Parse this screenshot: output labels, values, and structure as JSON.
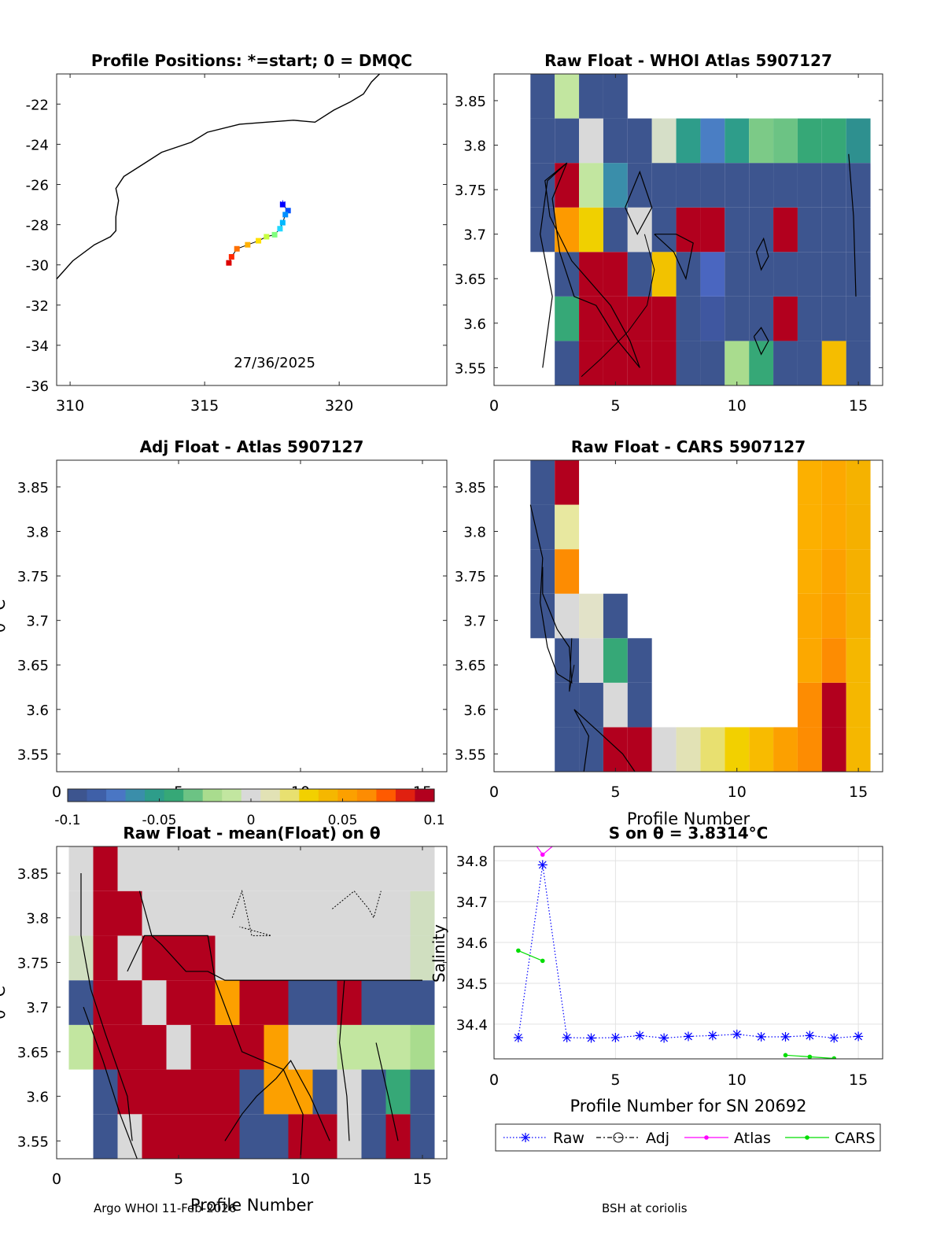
{
  "figure": {
    "footer_left": "Argo WHOI 11-Feb-2026",
    "footer_right": "BSH at coriolis"
  },
  "colors": {
    "blue": "#3d558f",
    "red": "#b2001e",
    "light_gray": "#d9d9d9",
    "pale_green": "#c2e6a0",
    "orange": "#fd8c02",
    "yellow_orange": "#f5b700",
    "teal": "#2e9d8a",
    "green": "#36a877",
    "mid_blue": "#4a76c4",
    "raw_series": "#0000ff",
    "atlas_series": "#ff00ff",
    "cars_series": "#00dd00"
  },
  "chart_data": [
    {
      "id": "profile_positions",
      "type": "scatter",
      "title": "Profile Positions: *=start; 0 = DMQC",
      "xlim": [
        309.5,
        324
      ],
      "ylim": [
        -36,
        -20.5
      ],
      "xticks": [
        310,
        315,
        320
      ],
      "yticks": [
        -22,
        -24,
        -26,
        -28,
        -30,
        -32,
        -34,
        -36
      ],
      "annotation": "27/36/2025",
      "coastline": [
        [
          309.5,
          -30.7
        ],
        [
          310.1,
          -29.8
        ],
        [
          310.9,
          -29.0
        ],
        [
          311.5,
          -28.6
        ],
        [
          311.7,
          -28.3
        ],
        [
          311.7,
          -27.6
        ],
        [
          311.8,
          -26.8
        ],
        [
          311.7,
          -26.2
        ],
        [
          312.0,
          -25.6
        ],
        [
          312.7,
          -25.0
        ],
        [
          313.4,
          -24.4
        ],
        [
          314.5,
          -23.9
        ],
        [
          315.1,
          -23.4
        ],
        [
          316.3,
          -23.0
        ],
        [
          317.3,
          -22.9
        ],
        [
          318.3,
          -22.8
        ],
        [
          319.1,
          -22.9
        ],
        [
          319.8,
          -22.3
        ],
        [
          320.4,
          -21.9
        ],
        [
          320.9,
          -21.5
        ],
        [
          321.2,
          -20.9
        ],
        [
          321.5,
          -20.5
        ]
      ],
      "track": {
        "lon": [
          317.9,
          318.1,
          318.0,
          317.9,
          317.8,
          317.6,
          317.3,
          317.0,
          316.6,
          316.2,
          316.0,
          315.9
        ],
        "lat": [
          -27.0,
          -27.3,
          -27.5,
          -27.9,
          -28.2,
          -28.5,
          -28.6,
          -28.8,
          -29.0,
          -29.2,
          -29.6,
          -29.9
        ],
        "colors": [
          "#0000ff",
          "#0050ff",
          "#0090ff",
          "#00b8ff",
          "#20d8ff",
          "#7fff7f",
          "#c8ff40",
          "#ffe000",
          "#ffb000",
          "#ff7000",
          "#ff2800",
          "#dd0000"
        ]
      }
    },
    {
      "id": "raw_whoi",
      "type": "heatmap",
      "title": "Raw Float - WHOI Atlas  5907127",
      "xlim": [
        0,
        16
      ],
      "ylim": [
        3.53,
        3.88
      ],
      "xticks": [
        0,
        5,
        10,
        15
      ],
      "yticks": [
        3.55,
        3.6,
        3.65,
        3.7,
        3.75,
        3.8,
        3.85
      ],
      "row_edges": [
        3.53,
        3.58,
        3.63,
        3.68,
        3.73,
        3.78,
        3.83,
        3.88
      ],
      "rows": [
        [
          "",
          "",
          "#3d558f",
          "#b2001e",
          "#b2001e",
          "#b2001e",
          "#b2001e",
          "#3d558f",
          "#3d558f",
          "#a9dc8e",
          "#36a877",
          "#3d558f",
          "#3d558f",
          "#f5bd00",
          "#3d558f"
        ],
        [
          "",
          "",
          "#36a877",
          "#b2001e",
          "#b2001e",
          "#b2001e",
          "#b2001e",
          "#3d558f",
          "#3f57a0",
          "#3d558f",
          "#3d558f",
          "#b2001e",
          "#3d558f",
          "#3d558f",
          "#3d558f"
        ],
        [
          "",
          "",
          "#3d558f",
          "#b2001e",
          "#b2001e",
          "#3d558f",
          "#f2c200",
          "#3d558f",
          "#4a66c0",
          "#3d558f",
          "#3d558f",
          "#3d558f",
          "#3d558f",
          "#3d558f",
          "#3d558f"
        ],
        [
          "",
          "#3d558f",
          "#fd9a00",
          "#f0d000",
          "#3d558f",
          "#d8d8d8",
          "#3d558f",
          "#b2001e",
          "#b2001e",
          "#3d558f",
          "#3d558f",
          "#b2001e",
          "#3d558f",
          "#3d558f",
          "#3d558f"
        ],
        [
          "",
          "#3d558f",
          "#b2001e",
          "#c2e6a0",
          "#3a8eaa",
          "#3d558f",
          "#3d558f",
          "#3d558f",
          "#3d558f",
          "#3d558f",
          "#3d558f",
          "#3d558f",
          "#3d558f",
          "#3d558f",
          "#3d558f"
        ],
        [
          "",
          "#3d558f",
          "#3d558f",
          "#d9d9d9",
          "#3d558f",
          "#3d558f",
          "#d6dfc8",
          "#2e9d8a",
          "#4a7ec4",
          "#2e9d8a",
          "#7cca87",
          "#6cc384",
          "#36a877",
          "#36a877",
          "#2e908f"
        ],
        [
          "",
          "#3d558f",
          "#c2e6a0",
          "#3d558f",
          "#3d558f",
          "",
          "",
          "",
          "",
          "",
          "",
          "",
          "",
          "",
          ""
        ]
      ]
    },
    {
      "id": "adj_atlas",
      "type": "heatmap",
      "title": "Adj Float - Atlas  5907127",
      "ylabel": "θ °C",
      "xlim": [
        0,
        16
      ],
      "ylim": [
        3.53,
        3.88
      ],
      "xticks": [
        0,
        5,
        10,
        15
      ],
      "yticks": [
        3.55,
        3.6,
        3.65,
        3.7,
        3.75,
        3.8,
        3.85
      ],
      "rows": []
    },
    {
      "id": "raw_cars",
      "type": "heatmap",
      "title": "Raw Float - CARS  5907127",
      "xlabel": "Profile Number",
      "xlim": [
        0,
        16
      ],
      "ylim": [
        3.53,
        3.88
      ],
      "xticks": [
        0,
        5,
        10,
        15
      ],
      "yticks": [
        3.55,
        3.6,
        3.65,
        3.7,
        3.75,
        3.8,
        3.85
      ],
      "row_edges": [
        3.53,
        3.58,
        3.63,
        3.68,
        3.73,
        3.78,
        3.83,
        3.88
      ],
      "rows": [
        [
          "",
          "",
          "#3d558f",
          "#3d558f",
          "#b2001e",
          "#b2001e",
          "#d9d9d9",
          "#e2e2b5",
          "#e8e070",
          "#f2d000",
          "#f8bb00",
          "#fca000",
          "#fd8c02",
          "#b2001e",
          "#f5b700"
        ],
        [
          "",
          "",
          "#3d558f",
          "#3d558f",
          "#d9d9d9",
          "#3d558f",
          "",
          "",
          "",
          "",
          "",
          "",
          "#fd8c02",
          "#b2001e",
          "#f5b700"
        ],
        [
          "",
          "",
          "#3d558f",
          "#d9d9d9",
          "#36a877",
          "#3d558f",
          "",
          "",
          "",
          "",
          "",
          "",
          "#fca800",
          "#fd8c02",
          "#f5b700"
        ],
        [
          "",
          "#3d558f",
          "#d9d9d9",
          "#e2e2c8",
          "#3d558f",
          "",
          "",
          "",
          "",
          "",
          "",
          "",
          "#fca800",
          "#fd9c00",
          "#f5b000"
        ],
        [
          "",
          "#3d558f",
          "#fd8c02",
          "",
          "",
          "",
          "",
          "",
          "",
          "",
          "",
          "",
          "#fcae00",
          "#fda000",
          "#f5b000"
        ],
        [
          "",
          "#3d558f",
          "#e8e8a0",
          "",
          "",
          "",
          "",
          "",
          "",
          "",
          "",
          "",
          "#fcb000",
          "#fda800",
          "#f5b000"
        ],
        [
          "",
          "#3d558f",
          "#b2001e",
          "",
          "",
          "",
          "",
          "",
          "",
          "",
          "",
          "",
          "#fcb000",
          "#fda800",
          "#f5b200"
        ]
      ]
    },
    {
      "id": "colorbar",
      "type": "colorbar",
      "range": [
        -0.1,
        0.1
      ],
      "tick_labels": [
        "-0.1",
        "-0.05",
        "0",
        "0.05",
        "0.1"
      ],
      "colors": [
        "#3d558f",
        "#3f60a8",
        "#4a76c4",
        "#3a8eaa",
        "#2e9d8a",
        "#36a877",
        "#6cc384",
        "#a9dc8e",
        "#c2e6a0",
        "#d9d9d9",
        "#e2e2b5",
        "#e8e070",
        "#f2d000",
        "#f5b700",
        "#fca000",
        "#fd8c02",
        "#ff5a00",
        "#e02010",
        "#b2001e"
      ]
    },
    {
      "id": "raw_minus_mean",
      "type": "heatmap",
      "title": "Raw Float - mean(Float) on θ",
      "ylabel": "θ °C",
      "xlabel": "Profile Number",
      "xlim": [
        0,
        16
      ],
      "ylim": [
        3.53,
        3.88
      ],
      "xticks": [
        0,
        5,
        10,
        15
      ],
      "yticks": [
        3.55,
        3.6,
        3.65,
        3.7,
        3.75,
        3.8,
        3.85
      ],
      "row_edges": [
        3.53,
        3.58,
        3.63,
        3.68,
        3.73,
        3.78,
        3.83,
        3.88
      ],
      "rows": [
        [
          "",
          "#3d558f",
          "#d9d9d9",
          "#b2001e",
          "#b2001e",
          "#b2001e",
          "#b2001e",
          "#3d558f",
          "#3d558f",
          "#b2001e",
          "#b2001e",
          "#d9d9d9",
          "#3d558f",
          "#b2001e",
          "#3d558f"
        ],
        [
          "",
          "#3d558f",
          "#b2001e",
          "#b2001e",
          "#b2001e",
          "#b2001e",
          "#b2001e",
          "#3d558f",
          "#fca000",
          "#fca000",
          "#3d558f",
          "#d9d9d9",
          "#3d558f",
          "#36a877",
          "#3d558f"
        ],
        [
          "#c2e6a0",
          "#b2001e",
          "#b2001e",
          "#b2001e",
          "#d9d9d9",
          "#b2001e",
          "#b2001e",
          "#b2001e",
          "#fca000",
          "#d9d9d9",
          "#d9d9d9",
          "#c2e6a0",
          "#c2e6a0",
          "#c2e6a0",
          "#a9dc8e"
        ],
        [
          "#3d558f",
          "#b2001e",
          "#b2001e",
          "#d9d9d9",
          "#b2001e",
          "#b2001e",
          "#fca000",
          "#b2001e",
          "#b2001e",
          "#3d558f",
          "#3d558f",
          "#b2001e",
          "#3d558f",
          "#3d558f",
          "#3d558f"
        ],
        [
          "#d0dfc0",
          "#b2001e",
          "#d9d9d9",
          "#b2001e",
          "#b2001e",
          "#b2001e",
          "#d9d9d9",
          "#d9d9d9",
          "#d9d9d9",
          "#d9d9d9",
          "#d9d9d9",
          "#d9d9d9",
          "#d9d9d9",
          "#d9d9d9",
          "#d0dfc0"
        ],
        [
          "#d9d9d9",
          "#b2001e",
          "#b2001e",
          "#d9d9d9",
          "#d9d9d9",
          "#d9d9d9",
          "#d9d9d9",
          "#d9d9d9",
          "#d9d9d9",
          "#d9d9d9",
          "#d9d9d9",
          "#d9d9d9",
          "#d9d9d9",
          "#d9d9d9",
          "#d0dfc0"
        ],
        [
          "#d9d9d9",
          "#b2001e",
          "#d9d9d9",
          "#d9d9d9",
          "#d9d9d9",
          "#d9d9d9",
          "#d9d9d9",
          "#d9d9d9",
          "#d9d9d9",
          "#d9d9d9",
          "#d9d9d9",
          "#d9d9d9",
          "#d9d9d9",
          "#d9d9d9",
          "#d9d9d9"
        ]
      ]
    },
    {
      "id": "salinity",
      "type": "line",
      "title": "S on θ = 3.8314°C",
      "xlabel": "Profile Number for SN 20692",
      "ylabel": "Salinity",
      "xlim": [
        0,
        16
      ],
      "ylim": [
        34.315,
        34.835
      ],
      "xticks": [
        0,
        5,
        10,
        15
      ],
      "yticks": [
        34.4,
        34.5,
        34.6,
        34.7,
        34.8
      ],
      "grid": true,
      "legend_position": "bottom",
      "series": [
        {
          "name": "Raw",
          "style": "dotted-star",
          "x": [
            1,
            2,
            3,
            4,
            5,
            6,
            7,
            8,
            9,
            10,
            11,
            12,
            13,
            14,
            15
          ],
          "values": [
            34.367,
            34.79,
            34.367,
            34.366,
            34.367,
            34.372,
            34.366,
            34.37,
            34.372,
            34.375,
            34.369,
            34.369,
            34.372,
            34.366,
            34.37
          ]
        },
        {
          "name": "Adj",
          "style": "dashdot-circle",
          "x": [],
          "values": []
        },
        {
          "name": "Atlas",
          "style": "solid-dot",
          "x": [
            1.7,
            2,
            2.5
          ],
          "values": [
            34.84,
            34.815,
            34.84
          ]
        },
        {
          "name": "CARS",
          "style": "solid-dot",
          "x": [
            1,
            2,
            null,
            12,
            13,
            14
          ],
          "values": [
            34.58,
            34.555,
            null,
            34.324,
            34.32,
            34.316
          ]
        }
      ]
    }
  ]
}
